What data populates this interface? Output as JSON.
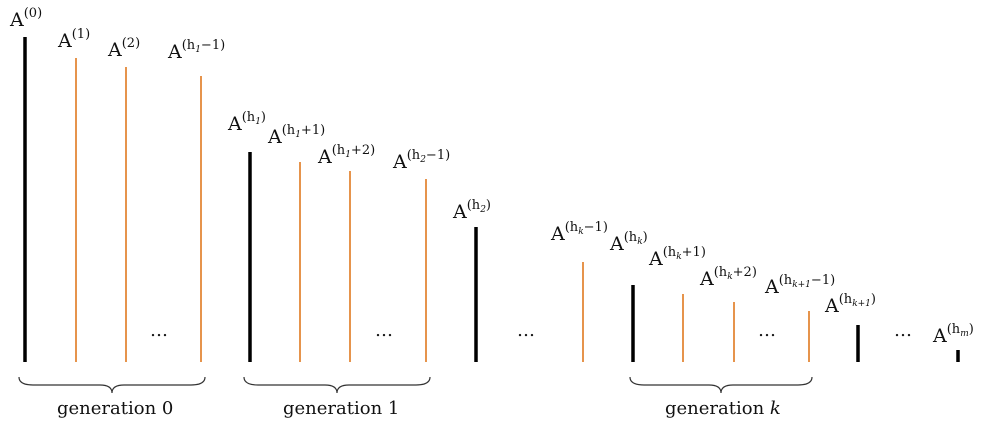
{
  "colors": {
    "major": "#000000",
    "minor": "#e07a1f"
  },
  "bars": [
    {
      "label_base": "A",
      "label_sup": "(0)",
      "kind": "major"
    },
    {
      "label_base": "A",
      "label_sup": "(1)",
      "kind": "minor"
    },
    {
      "label_base": "A",
      "label_sup": "(2)",
      "kind": "minor"
    },
    {
      "label_base": "A",
      "label_sup": "(h",
      "label_sub": "1",
      "label_sup_tail": "−1)",
      "kind": "minor"
    },
    {
      "label_base": "A",
      "label_sup": "(h",
      "label_sub": "1",
      "label_sup_tail": ")",
      "kind": "major"
    },
    {
      "label_base": "A",
      "label_sup": "(h",
      "label_sub": "1",
      "label_sup_tail": "+1)",
      "kind": "minor"
    },
    {
      "label_base": "A",
      "label_sup": "(h",
      "label_sub": "1",
      "label_sup_tail": "+2)",
      "kind": "minor"
    },
    {
      "label_base": "A",
      "label_sup": "(h",
      "label_sub": "2",
      "label_sup_tail": "−1)",
      "kind": "minor"
    },
    {
      "label_base": "A",
      "label_sup": "(h",
      "label_sub": "2",
      "label_sup_tail": ")",
      "kind": "major"
    },
    {
      "label_base": "A",
      "label_sup": "(h",
      "label_sub": "k",
      "label_sup_tail": "−1)",
      "kind": "minor"
    },
    {
      "label_base": "A",
      "label_sup": "(h",
      "label_sub": "k",
      "label_sup_tail": ")",
      "kind": "major"
    },
    {
      "label_base": "A",
      "label_sup": "(h",
      "label_sub": "k",
      "label_sup_tail": "+1)",
      "kind": "minor"
    },
    {
      "label_base": "A",
      "label_sup": "(h",
      "label_sub": "k",
      "label_sup_tail": "+2)",
      "kind": "minor"
    },
    {
      "label_base": "A",
      "label_sup": "(h",
      "label_sub": "k+1",
      "label_sup_tail": "−1)",
      "kind": "minor"
    },
    {
      "label_base": "A",
      "label_sup": "(h",
      "label_sub": "k+1",
      "label_sup_tail": ")",
      "kind": "major"
    },
    {
      "label_base": "A",
      "label_sup": "(h",
      "label_sub": "m",
      "label_sup_tail": ")",
      "kind": "major"
    }
  ],
  "ellipsis": "…",
  "generations": [
    {
      "label": "generation 0"
    },
    {
      "label": "generation 1"
    },
    {
      "label_prefix": "generation ",
      "label_var": "k"
    }
  ]
}
